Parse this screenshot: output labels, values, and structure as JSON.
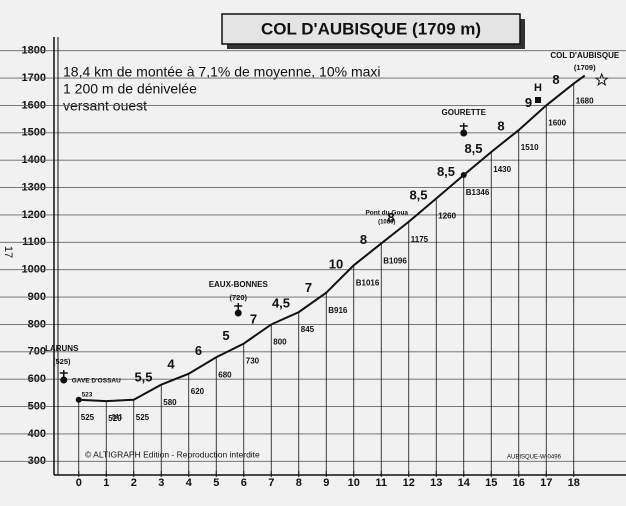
{
  "chart_data": {
    "type": "line",
    "title": "COL D'AUBISQUE (1709 m)",
    "info": [
      "18,4 km de montée à 7,1% de moyenne, 10% maxi",
      "1 200 m de dénivelée",
      "versant ouest"
    ],
    "x": [
      0,
      1,
      2,
      3,
      4,
      5,
      6,
      7,
      8,
      9,
      10,
      11,
      12,
      13,
      14,
      15,
      16,
      17,
      18,
      18.4
    ],
    "values": [
      525,
      520,
      525,
      580,
      620,
      680,
      730,
      800,
      845,
      916,
      1016,
      1096,
      1175,
      1260,
      1346,
      1430,
      1510,
      1600,
      1680,
      1709
    ],
    "value_labels": [
      "525",
      "520",
      "525",
      "580",
      "620",
      "680",
      "730",
      "800",
      "845",
      "B916",
      "B1016",
      "B1096",
      "1175",
      "1260",
      "B1346",
      "1430",
      "1510",
      "1600",
      "1680",
      null
    ],
    "color": "#111111",
    "gradients": {
      "x": [
        2,
        3,
        4,
        5,
        6,
        7,
        8,
        9,
        10,
        11,
        12,
        13,
        14,
        15,
        16,
        17
      ],
      "values": [
        5.5,
        4,
        6,
        5,
        7,
        4.5,
        7,
        10,
        8,
        8,
        8.5,
        8.5,
        8.5,
        8,
        9,
        8
      ],
      "value_labels": [
        "5,5",
        "4",
        "6",
        "5",
        "7",
        "4,5",
        "7",
        "10",
        "8",
        "8",
        "8,5",
        "8,5",
        "8,5",
        "8",
        "9",
        "8"
      ]
    },
    "places": [
      {
        "name": "LARUNS",
        "altitude": "(525)",
        "x": 0
      },
      {
        "name": "GAVE D'OSSAU",
        "x": 1
      },
      {
        "name": "EAUX-BONNES",
        "altitude": "(720)",
        "x": 5.8
      },
      {
        "name": "Pont du Goua",
        "altitude": "(1086)",
        "x": 11.2
      },
      {
        "name": "GOURETTE",
        "x": 14
      },
      {
        "name": "COL D'AUBISQUE",
        "altitude": "(1709)",
        "x": 18.4
      }
    ],
    "spot_heights": {
      "x": [
        0.3,
        1.4
      ],
      "values": [
        523,
        511
      ]
    },
    "xlim": [
      -0.9,
      19.5
    ],
    "ylim": [
      250,
      1850
    ],
    "xticks": [
      0,
      1,
      2,
      3,
      4,
      5,
      6,
      7,
      8,
      9,
      10,
      11,
      12,
      13,
      14,
      15,
      16,
      17,
      18
    ],
    "yticks": [
      300,
      400,
      500,
      600,
      700,
      800,
      900,
      1000,
      1100,
      1200,
      1300,
      1400,
      1500,
      1600,
      1700,
      1800
    ],
    "grid": true,
    "copyright": "© ALTIGRAPH Edition - Reproduction interdite",
    "code": "AUBISQUE-W-0496",
    "page_number": "17"
  }
}
